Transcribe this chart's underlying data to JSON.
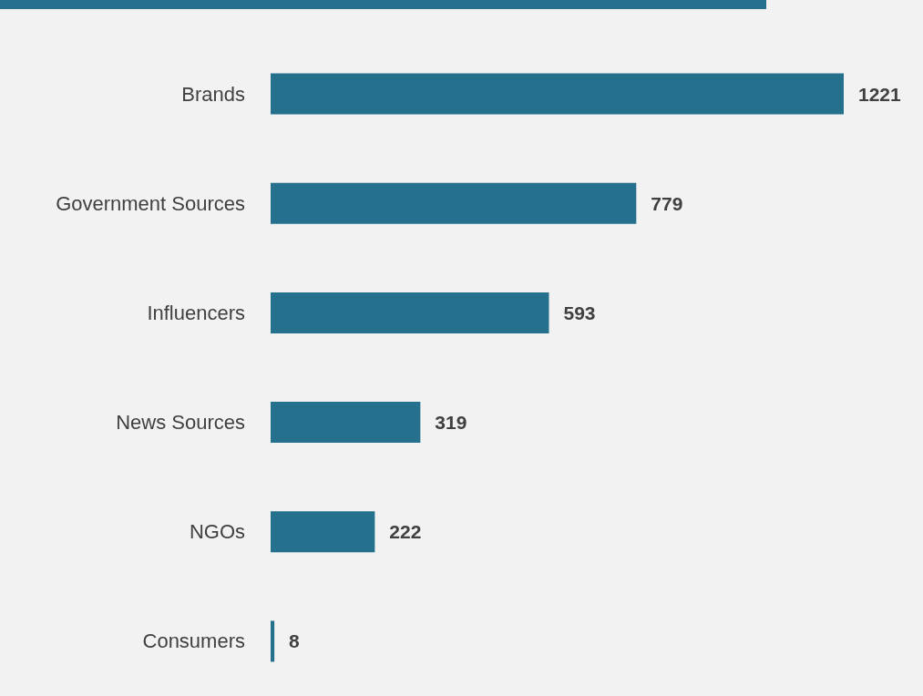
{
  "chart_data": {
    "type": "bar",
    "orientation": "horizontal",
    "categories": [
      "Brands",
      "Government Sources",
      "Influencers",
      "News Sources",
      "NGOs",
      "Consumers"
    ],
    "values": [
      1221,
      779,
      593,
      319,
      222,
      8
    ],
    "color": "#25718d",
    "data_labels": true,
    "tick_labels": "y"
  }
}
